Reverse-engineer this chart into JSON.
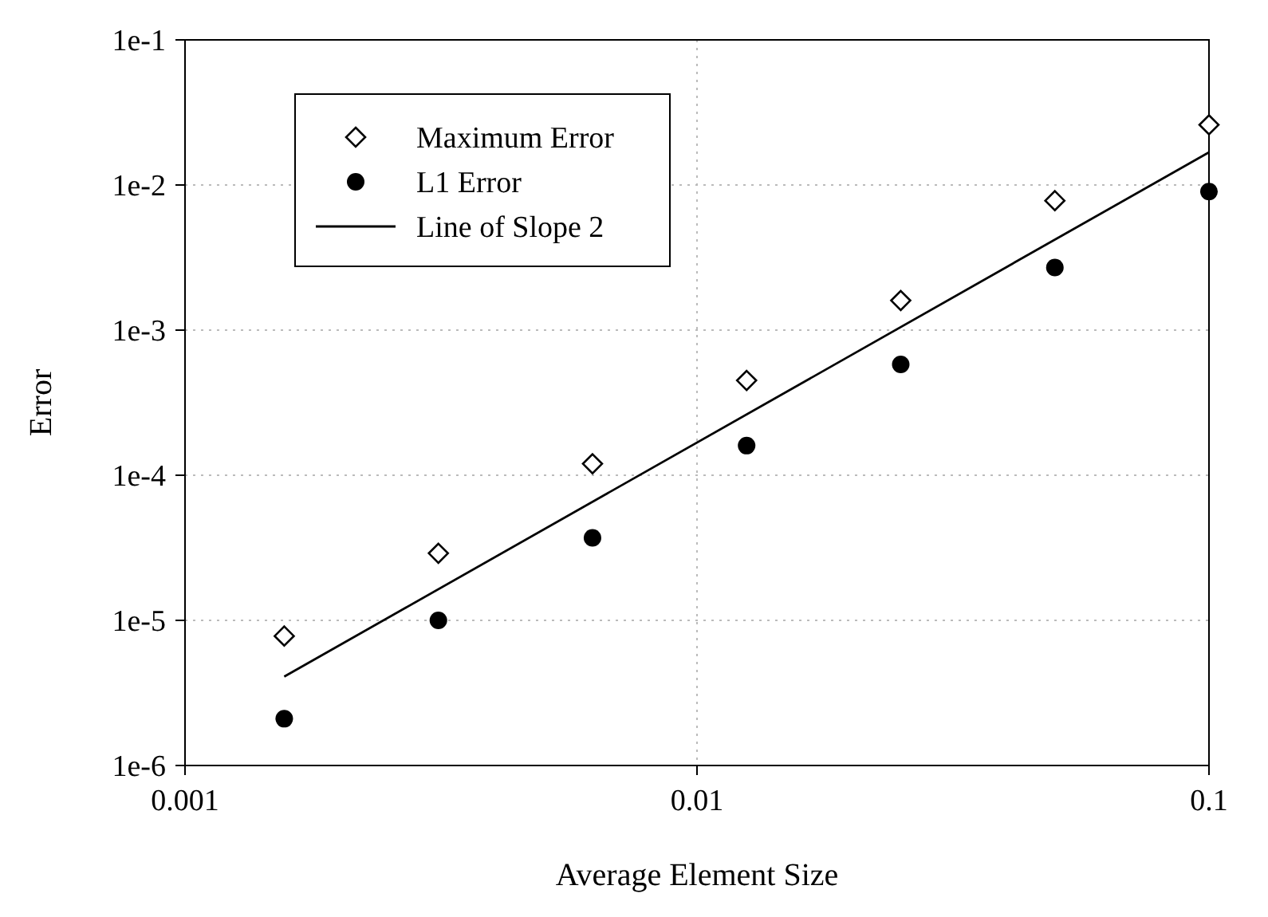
{
  "chart_data": {
    "type": "scatter",
    "xlabel": "Average Element Size",
    "ylabel": "Error",
    "log": "xy",
    "grid": true,
    "legend": "top left",
    "xlim": [
      0.001,
      0.1
    ],
    "xticks": [
      0.001,
      0.01,
      0.1
    ],
    "ylim": [
      1e-06,
      0.1
    ],
    "yticks": [
      {
        "value": 1e-06,
        "label": "1e-6"
      },
      {
        "value": 1e-05,
        "label": "1e-5"
      },
      {
        "value": 0.0001,
        "label": "1e-4"
      },
      {
        "value": 0.001,
        "label": "1e-3"
      },
      {
        "value": 0.01,
        "label": "1e-2"
      },
      {
        "value": 0.1,
        "label": "1e-1"
      }
    ],
    "x": [
      0.0015625,
      0.003125,
      0.00625,
      0.0125,
      0.025,
      0.05,
      0.1
    ],
    "series": [
      {
        "name": "Maximum Error",
        "marker": "diamond",
        "color": "#000000",
        "values": [
          7.8e-06,
          2.9e-05,
          0.00012,
          0.00045,
          0.0016,
          0.0078,
          0.026
        ]
      },
      {
        "name": "L1 Error",
        "marker": "circle",
        "color": "#000000",
        "values": [
          2.1e-06,
          1e-05,
          3.7e-05,
          0.00016,
          0.00058,
          0.0027,
          0.009
        ]
      },
      {
        "name": "Line of Slope 2",
        "type": "line",
        "marker": "none",
        "line_style": "solid",
        "color": "#000000",
        "x": [
          0.0015625,
          0.1
        ],
        "values": [
          4.1e-06,
          0.0168
        ]
      }
    ]
  }
}
